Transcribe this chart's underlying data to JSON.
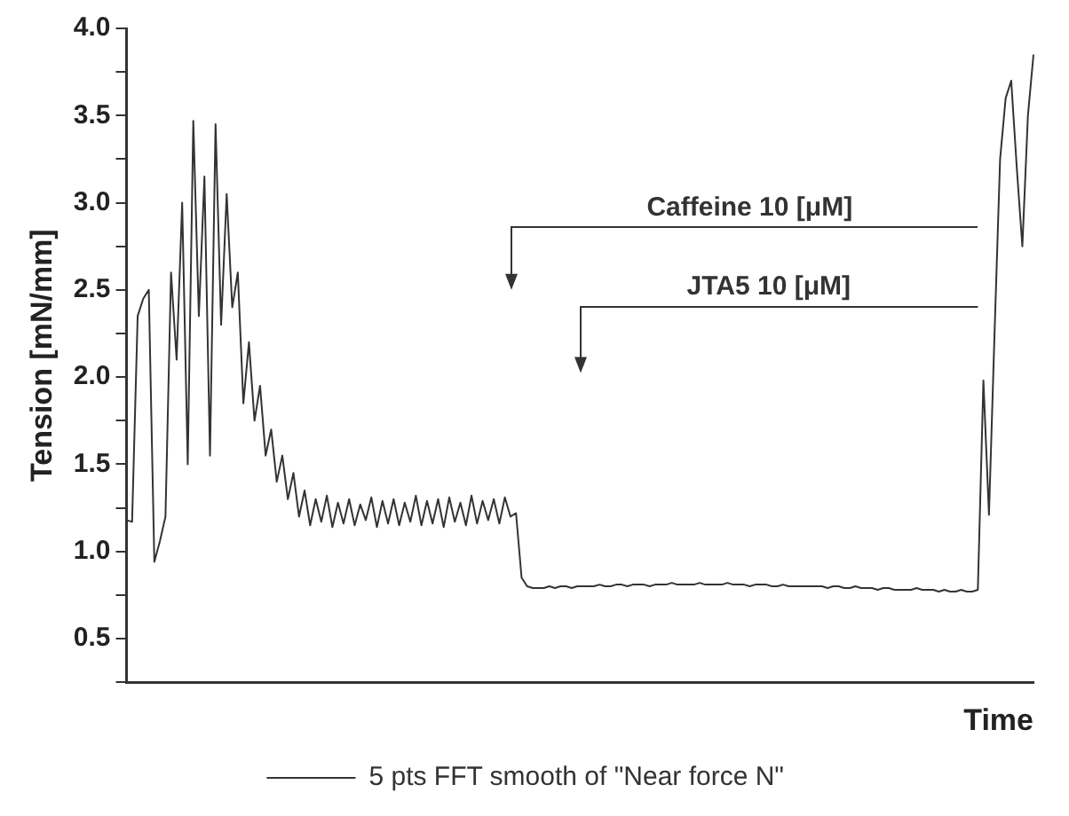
{
  "chart_data": {
    "type": "line",
    "xlabel": "Time",
    "ylabel": "Tension [mN/mm]",
    "categories": [
      null,
      null,
      null,
      null,
      null,
      null,
      null,
      null,
      null,
      null,
      null,
      null,
      null,
      null,
      null,
      null,
      null,
      null,
      null,
      null,
      null,
      null,
      null,
      null,
      null,
      null,
      null,
      null,
      null,
      null,
      null,
      null,
      null,
      null,
      null,
      null,
      null,
      null,
      null,
      null,
      null,
      null,
      null,
      null,
      null,
      null,
      null,
      null,
      null,
      null,
      null,
      null,
      null,
      null,
      null,
      null,
      null,
      null,
      null,
      null,
      null,
      null,
      null,
      null,
      null,
      null,
      null,
      null,
      null,
      null,
      null,
      null,
      null,
      null,
      null,
      null,
      null,
      null,
      null,
      null,
      null,
      null,
      null,
      null,
      null,
      null,
      null,
      null,
      null,
      null,
      null,
      null,
      null,
      null,
      null,
      null,
      null,
      null,
      null,
      null,
      null,
      null,
      null,
      null,
      null,
      null,
      null,
      null,
      null,
      null,
      null,
      null,
      null,
      null,
      null,
      null,
      null,
      null,
      null,
      null,
      null,
      null,
      null,
      null,
      null,
      null,
      null,
      null,
      null,
      null,
      null,
      null,
      null,
      null,
      null,
      null,
      null,
      null,
      null,
      null,
      null,
      null,
      null,
      null,
      null,
      null,
      null,
      null,
      null,
      null,
      null,
      null,
      null,
      null,
      null,
      null,
      null,
      null,
      null,
      null,
      null,
      null,
      null,
      null
    ],
    "series": [
      {
        "name": "5 pts FFT smooth of \"Near force N\"",
        "color": "#333333",
        "values": [
          1.18,
          1.17,
          2.35,
          2.45,
          2.5,
          0.94,
          1.06,
          1.2,
          2.6,
          2.1,
          3.0,
          1.5,
          3.47,
          2.35,
          3.15,
          1.55,
          3.45,
          2.3,
          3.05,
          2.4,
          2.6,
          1.85,
          2.2,
          1.75,
          1.95,
          1.55,
          1.7,
          1.4,
          1.55,
          1.3,
          1.45,
          1.2,
          1.35,
          1.15,
          1.3,
          1.17,
          1.32,
          1.14,
          1.28,
          1.16,
          1.3,
          1.15,
          1.27,
          1.18,
          1.31,
          1.14,
          1.29,
          1.16,
          1.3,
          1.15,
          1.28,
          1.17,
          1.32,
          1.15,
          1.29,
          1.16,
          1.3,
          1.14,
          1.31,
          1.17,
          1.28,
          1.15,
          1.32,
          1.16,
          1.29,
          1.18,
          1.3,
          1.16,
          1.31,
          1.2,
          1.22,
          0.85,
          0.8,
          0.79,
          0.79,
          0.79,
          0.8,
          0.79,
          0.8,
          0.8,
          0.79,
          0.8,
          0.8,
          0.8,
          0.8,
          0.81,
          0.8,
          0.8,
          0.81,
          0.81,
          0.8,
          0.81,
          0.81,
          0.81,
          0.8,
          0.81,
          0.81,
          0.81,
          0.82,
          0.81,
          0.81,
          0.81,
          0.81,
          0.82,
          0.81,
          0.81,
          0.81,
          0.81,
          0.82,
          0.81,
          0.81,
          0.81,
          0.8,
          0.81,
          0.81,
          0.81,
          0.8,
          0.8,
          0.81,
          0.8,
          0.8,
          0.8,
          0.8,
          0.8,
          0.8,
          0.8,
          0.79,
          0.8,
          0.8,
          0.79,
          0.79,
          0.8,
          0.79,
          0.79,
          0.79,
          0.78,
          0.79,
          0.79,
          0.78,
          0.78,
          0.78,
          0.78,
          0.79,
          0.78,
          0.78,
          0.78,
          0.77,
          0.78,
          0.77,
          0.77,
          0.78,
          0.77,
          0.77,
          0.78,
          1.98,
          1.21,
          2.25,
          3.25,
          3.6,
          3.7,
          3.2,
          2.75,
          3.5,
          3.85
        ]
      }
    ],
    "ylim": [
      0.25,
      4.0
    ],
    "yticks": [
      {
        "value": 0.25,
        "label": null
      },
      0.5,
      {
        "value": 0.75,
        "label": null
      },
      {
        "value": 1,
        "label": "1.0"
      },
      {
        "value": 1.25,
        "label": null
      },
      1.5,
      {
        "value": 1.75,
        "label": null
      },
      {
        "value": 2,
        "label": "2.0"
      },
      {
        "value": 2.25,
        "label": null
      },
      2.5,
      {
        "value": 2.75,
        "label": null
      },
      {
        "value": 3,
        "label": "3.0"
      },
      {
        "value": 3.25,
        "label": null
      },
      3.5,
      {
        "value": 3.75,
        "label": null
      },
      {
        "value": 4,
        "label": "4.0"
      }
    ],
    "legend": "bottom",
    "annotations": [
      "Caffeine 10 [μM]",
      "JTA5 10 [μM]"
    ]
  }
}
